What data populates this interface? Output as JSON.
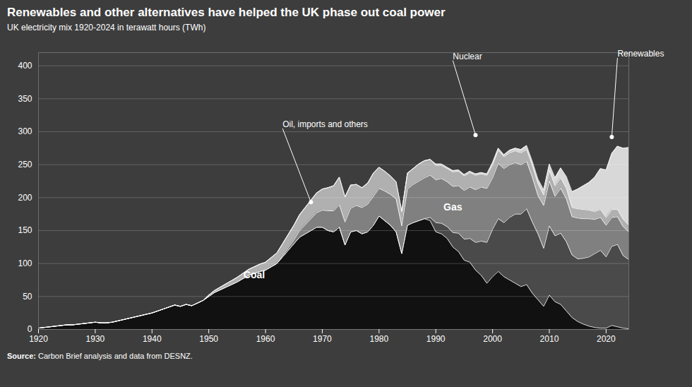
{
  "chart_data": {
    "type": "area",
    "stacked": true,
    "title": "Renewables and other alternatives have helped the UK phase out coal power",
    "subtitle": "UK electricity mix 1920-2024 in terawatt hours (TWh)",
    "source": "Source: Carbon Brief analysis and data from DESNZ.",
    "x": [
      1920,
      1921,
      1922,
      1923,
      1924,
      1925,
      1926,
      1927,
      1928,
      1929,
      1930,
      1931,
      1932,
      1933,
      1934,
      1935,
      1936,
      1937,
      1938,
      1939,
      1940,
      1941,
      1942,
      1943,
      1944,
      1945,
      1946,
      1947,
      1948,
      1949,
      1950,
      1951,
      1952,
      1953,
      1954,
      1955,
      1956,
      1957,
      1958,
      1959,
      1960,
      1961,
      1962,
      1963,
      1964,
      1965,
      1966,
      1967,
      1968,
      1969,
      1970,
      1971,
      1972,
      1973,
      1974,
      1975,
      1976,
      1977,
      1978,
      1979,
      1980,
      1981,
      1982,
      1983,
      1984,
      1985,
      1986,
      1987,
      1988,
      1989,
      1990,
      1991,
      1992,
      1993,
      1994,
      1995,
      1996,
      1997,
      1998,
      1999,
      2000,
      2001,
      2002,
      2003,
      2004,
      2005,
      2006,
      2007,
      2008,
      2009,
      2010,
      2011,
      2012,
      2013,
      2014,
      2015,
      2016,
      2017,
      2018,
      2019,
      2020,
      2021,
      2022,
      2023,
      2024
    ],
    "series": [
      {
        "name": "Coal",
        "color": "#111111",
        "values": [
          2,
          3,
          4,
          5,
          6,
          7,
          7,
          8,
          9,
          10,
          11,
          10,
          10,
          11,
          13,
          15,
          17,
          19,
          21,
          23,
          25,
          28,
          31,
          34,
          37,
          35,
          38,
          36,
          40,
          44,
          50,
          56,
          60,
          64,
          68,
          72,
          77,
          82,
          85,
          88,
          90,
          95,
          100,
          110,
          120,
          130,
          140,
          145,
          150,
          155,
          155,
          150,
          148,
          155,
          128,
          148,
          150,
          145,
          148,
          158,
          172,
          165,
          158,
          148,
          115,
          158,
          162,
          165,
          168,
          165,
          148,
          145,
          138,
          125,
          118,
          105,
          102,
          90,
          82,
          70,
          80,
          88,
          80,
          75,
          70,
          65,
          68,
          55,
          45,
          35,
          52,
          42,
          38,
          28,
          18,
          12,
          8,
          5,
          3,
          2,
          2,
          6,
          4,
          2,
          1
        ]
      },
      {
        "name": "Gas",
        "color": "#4a4a4a",
        "values": [
          0,
          0,
          0,
          0,
          0,
          0,
          0,
          0,
          0,
          0,
          0,
          0,
          0,
          0,
          0,
          0,
          0,
          0,
          0,
          0,
          0,
          0,
          0,
          0,
          0,
          0,
          0,
          0,
          0,
          0,
          0,
          0,
          0,
          0,
          0,
          0,
          0,
          0,
          0,
          0,
          0,
          0,
          0,
          0,
          0,
          0,
          0,
          0,
          0,
          0,
          0,
          0,
          0,
          0,
          0,
          0,
          0,
          0,
          0,
          0,
          0,
          0,
          0,
          0,
          0,
          0,
          0,
          0,
          0,
          5,
          14,
          16,
          18,
          22,
          28,
          32,
          36,
          42,
          52,
          62,
          72,
          80,
          82,
          95,
          105,
          110,
          115,
          108,
          100,
          88,
          105,
          100,
          108,
          105,
          95,
          95,
          100,
          105,
          112,
          118,
          108,
          120,
          125,
          110,
          105
        ]
      },
      {
        "name": "Nuclear",
        "color": "#808080",
        "values": [
          0,
          0,
          0,
          0,
          0,
          0,
          0,
          0,
          0,
          0,
          0,
          0,
          0,
          0,
          0,
          0,
          0,
          0,
          0,
          0,
          0,
          0,
          0,
          0,
          0,
          0,
          0,
          0,
          0,
          0,
          0,
          0,
          0,
          0,
          0,
          0,
          0,
          0,
          0,
          0,
          0,
          0,
          0,
          2,
          4,
          6,
          10,
          14,
          18,
          22,
          26,
          30,
          32,
          34,
          35,
          36,
          38,
          40,
          42,
          44,
          42,
          45,
          47,
          50,
          42,
          55,
          58,
          60,
          62,
          64,
          65,
          68,
          68,
          70,
          72,
          74,
          78,
          80,
          82,
          82,
          78,
          84,
          82,
          80,
          78,
          75,
          72,
          68,
          58,
          65,
          68,
          60,
          68,
          65,
          58,
          62,
          60,
          58,
          52,
          50,
          48,
          44,
          42,
          44,
          42
        ]
      },
      {
        "name": "Oil, imports and others",
        "color": "#b0b0b0",
        "values": [
          0,
          0,
          0,
          0,
          0,
          0,
          0,
          0,
          0,
          0,
          0,
          0,
          0,
          0,
          0,
          0,
          0,
          0,
          0,
          0,
          0,
          0,
          0,
          0,
          0,
          0,
          0,
          0,
          0,
          0,
          2,
          3,
          4,
          5,
          6,
          7,
          8,
          9,
          10,
          11,
          12,
          14,
          16,
          18,
          20,
          22,
          24,
          26,
          28,
          30,
          32,
          35,
          38,
          42,
          38,
          35,
          32,
          30,
          32,
          35,
          32,
          30,
          28,
          26,
          22,
          24,
          24,
          26,
          26,
          24,
          22,
          20,
          20,
          22,
          22,
          22,
          22,
          22,
          20,
          20,
          20,
          20,
          18,
          18,
          18,
          18,
          18,
          18,
          18,
          16,
          16,
          16,
          16,
          16,
          14,
          14,
          14,
          13,
          12,
          12,
          12,
          12,
          11,
          11,
          10
        ]
      },
      {
        "name": "Renewables",
        "color": "#d8d8d8",
        "values": [
          0,
          0,
          0,
          0,
          0,
          0,
          0,
          0,
          0,
          0,
          0,
          0,
          0,
          0,
          0,
          0,
          0,
          0,
          0,
          0,
          0,
          0,
          0,
          0,
          0,
          0,
          0,
          0,
          0,
          0,
          0,
          0,
          0,
          0,
          0,
          0,
          0,
          0,
          0,
          0,
          0,
          0,
          0,
          0,
          0,
          0,
          0,
          0,
          0,
          0,
          0,
          0,
          0,
          0,
          0,
          0,
          0,
          0,
          0,
          0,
          0,
          0,
          0,
          0,
          0,
          0,
          0,
          0,
          0,
          0,
          2,
          2,
          2,
          2,
          2,
          2,
          2,
          2,
          2,
          2,
          3,
          3,
          3,
          4,
          4,
          5,
          6,
          6,
          7,
          8,
          10,
          12,
          15,
          18,
          24,
          30,
          36,
          42,
          52,
          62,
          72,
          85,
          96,
          108,
          118
        ]
      }
    ],
    "annotations": [
      {
        "text": "Coal",
        "x": 1958,
        "y": 82
      },
      {
        "text": "Gas",
        "x": 1993,
        "y": 185
      },
      {
        "text": "Oil, imports and others",
        "x": 1963,
        "y": 305,
        "pointer": {
          "x": 1968,
          "y": 193
        }
      },
      {
        "text": "Nuclear",
        "x": 1993,
        "y": 408,
        "pointer": {
          "x": 1997,
          "y": 295
        }
      },
      {
        "text": "Renewables",
        "x": 2022,
        "y": 412,
        "pointer": {
          "x": 2021,
          "y": 292
        }
      }
    ],
    "xlim": [
      1920,
      2024
    ],
    "xticks": [
      1920,
      1930,
      1940,
      1950,
      1960,
      1970,
      1980,
      1990,
      2000,
      2010,
      2020
    ],
    "ylim": [
      0,
      420
    ],
    "yticks": [
      0,
      50,
      100,
      150,
      200,
      250,
      300,
      350,
      400
    ],
    "grid": true
  }
}
